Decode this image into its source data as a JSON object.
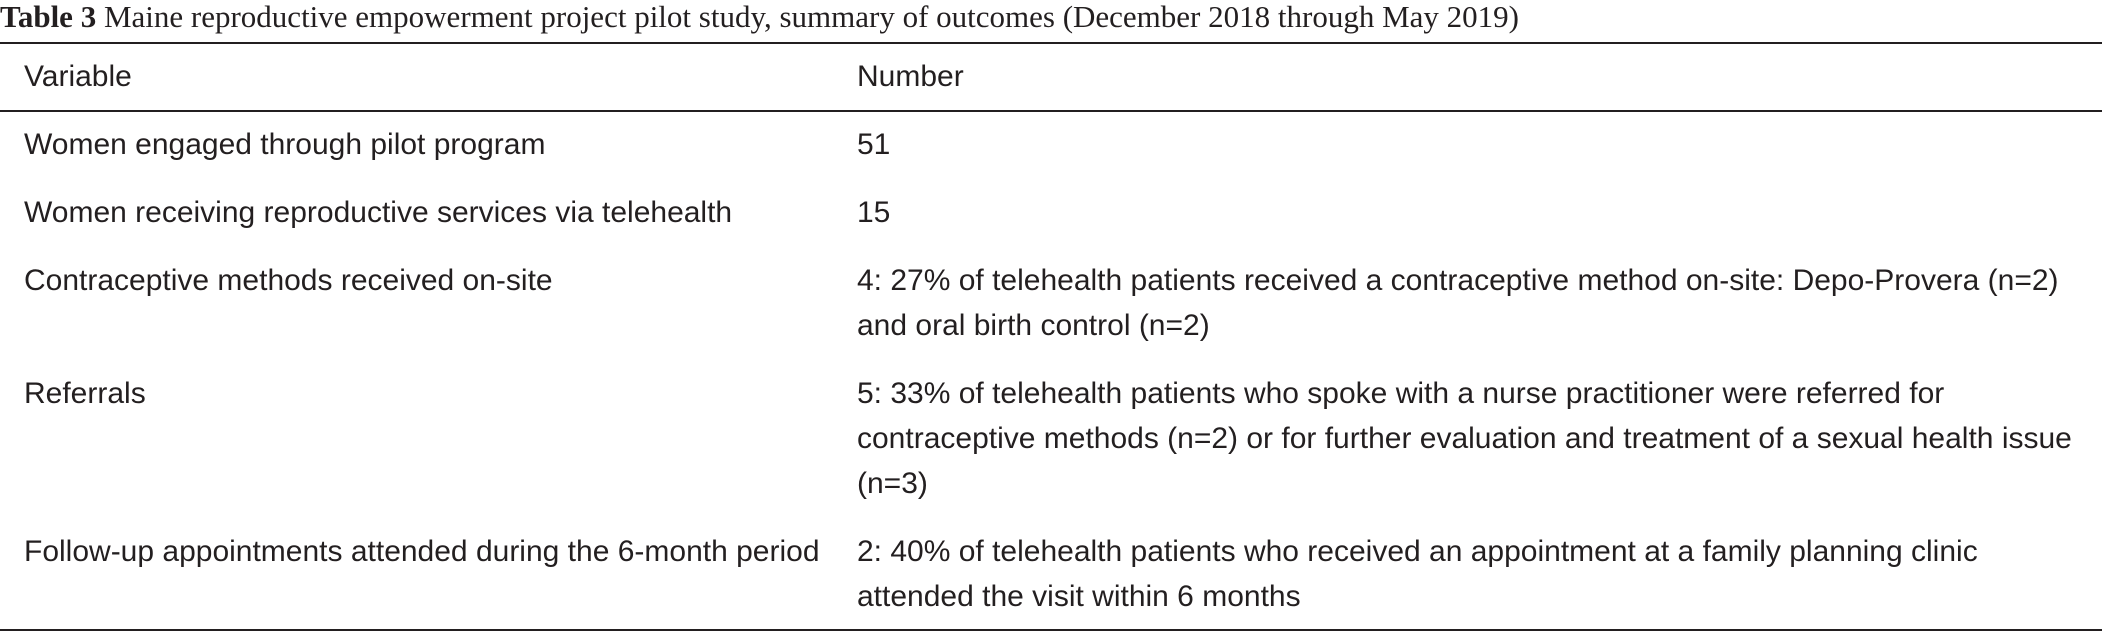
{
  "caption": {
    "label": "Table 3",
    "text": " Maine reproductive empowerment project pilot study, summary of outcomes (December 2018 through May 2019)"
  },
  "table": {
    "headers": {
      "variable": "Variable",
      "number": "Number"
    },
    "rows": [
      {
        "variable": "Women engaged through pilot program",
        "number": "51"
      },
      {
        "variable": "Women receiving reproductive services via telehealth",
        "number": "15"
      },
      {
        "variable": "Contraceptive methods received on-site",
        "number": "4: 27% of telehealth patients received a contraceptive method on-site: Depo-Provera (n=2) and oral birth control (n=2)"
      },
      {
        "variable": "Referrals",
        "number": "5: 33% of telehealth patients who spoke with a nurse practitioner were referred for contraceptive methods (n=2) or for further evaluation and treatment of a sexual health issue (n=3)"
      },
      {
        "variable": "Follow-up appointments attended during the 6-month period",
        "number": "2: 40% of telehealth patients who received an appointment at a family planning clinic attended the visit within 6 months"
      }
    ]
  }
}
